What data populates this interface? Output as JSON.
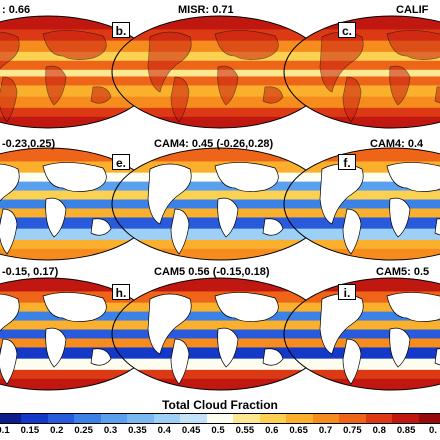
{
  "panels": [
    {
      "letter": "",
      "title": ": 0.66"
    },
    {
      "letter": "b.",
      "title": "MISR: 0.71"
    },
    {
      "letter": "c.",
      "title": "CALIF"
    },
    {
      "letter": "",
      "title": "-0.23,0.25)"
    },
    {
      "letter": "e.",
      "title": "CAM4: 0.45 (-0.26,0.28)"
    },
    {
      "letter": "f.",
      "title": "CAM4: 0.4"
    },
    {
      "letter": "",
      "title": "-0.15, 0.17)"
    },
    {
      "letter": "h.",
      "title": "CAM5 0.56 (-0.15,0.18)"
    },
    {
      "letter": "i.",
      "title": "CAM5: 0.5"
    }
  ],
  "colorbar": {
    "title": "Total Cloud Fraction",
    "tick_labels": [
      "0.1",
      "0.15",
      "0.2",
      "0.25",
      "0.3",
      "0.35",
      "0.4",
      "0.45",
      "0.5",
      "0.55",
      "0.6",
      "0.65",
      "0.7",
      "0.75",
      "0.8",
      "0.85",
      "0."
    ],
    "colors": [
      "#0a1e8c",
      "#1438c8",
      "#2a5adc",
      "#3c82e6",
      "#5aa0ee",
      "#7ab8f2",
      "#9cd0f6",
      "#c2e2f8",
      "#fdfdf0",
      "#fbe890",
      "#fcd050",
      "#fab02c",
      "#f68c1e",
      "#ee6418",
      "#dc3a14",
      "#c01810",
      "#960c0c"
    ]
  }
}
